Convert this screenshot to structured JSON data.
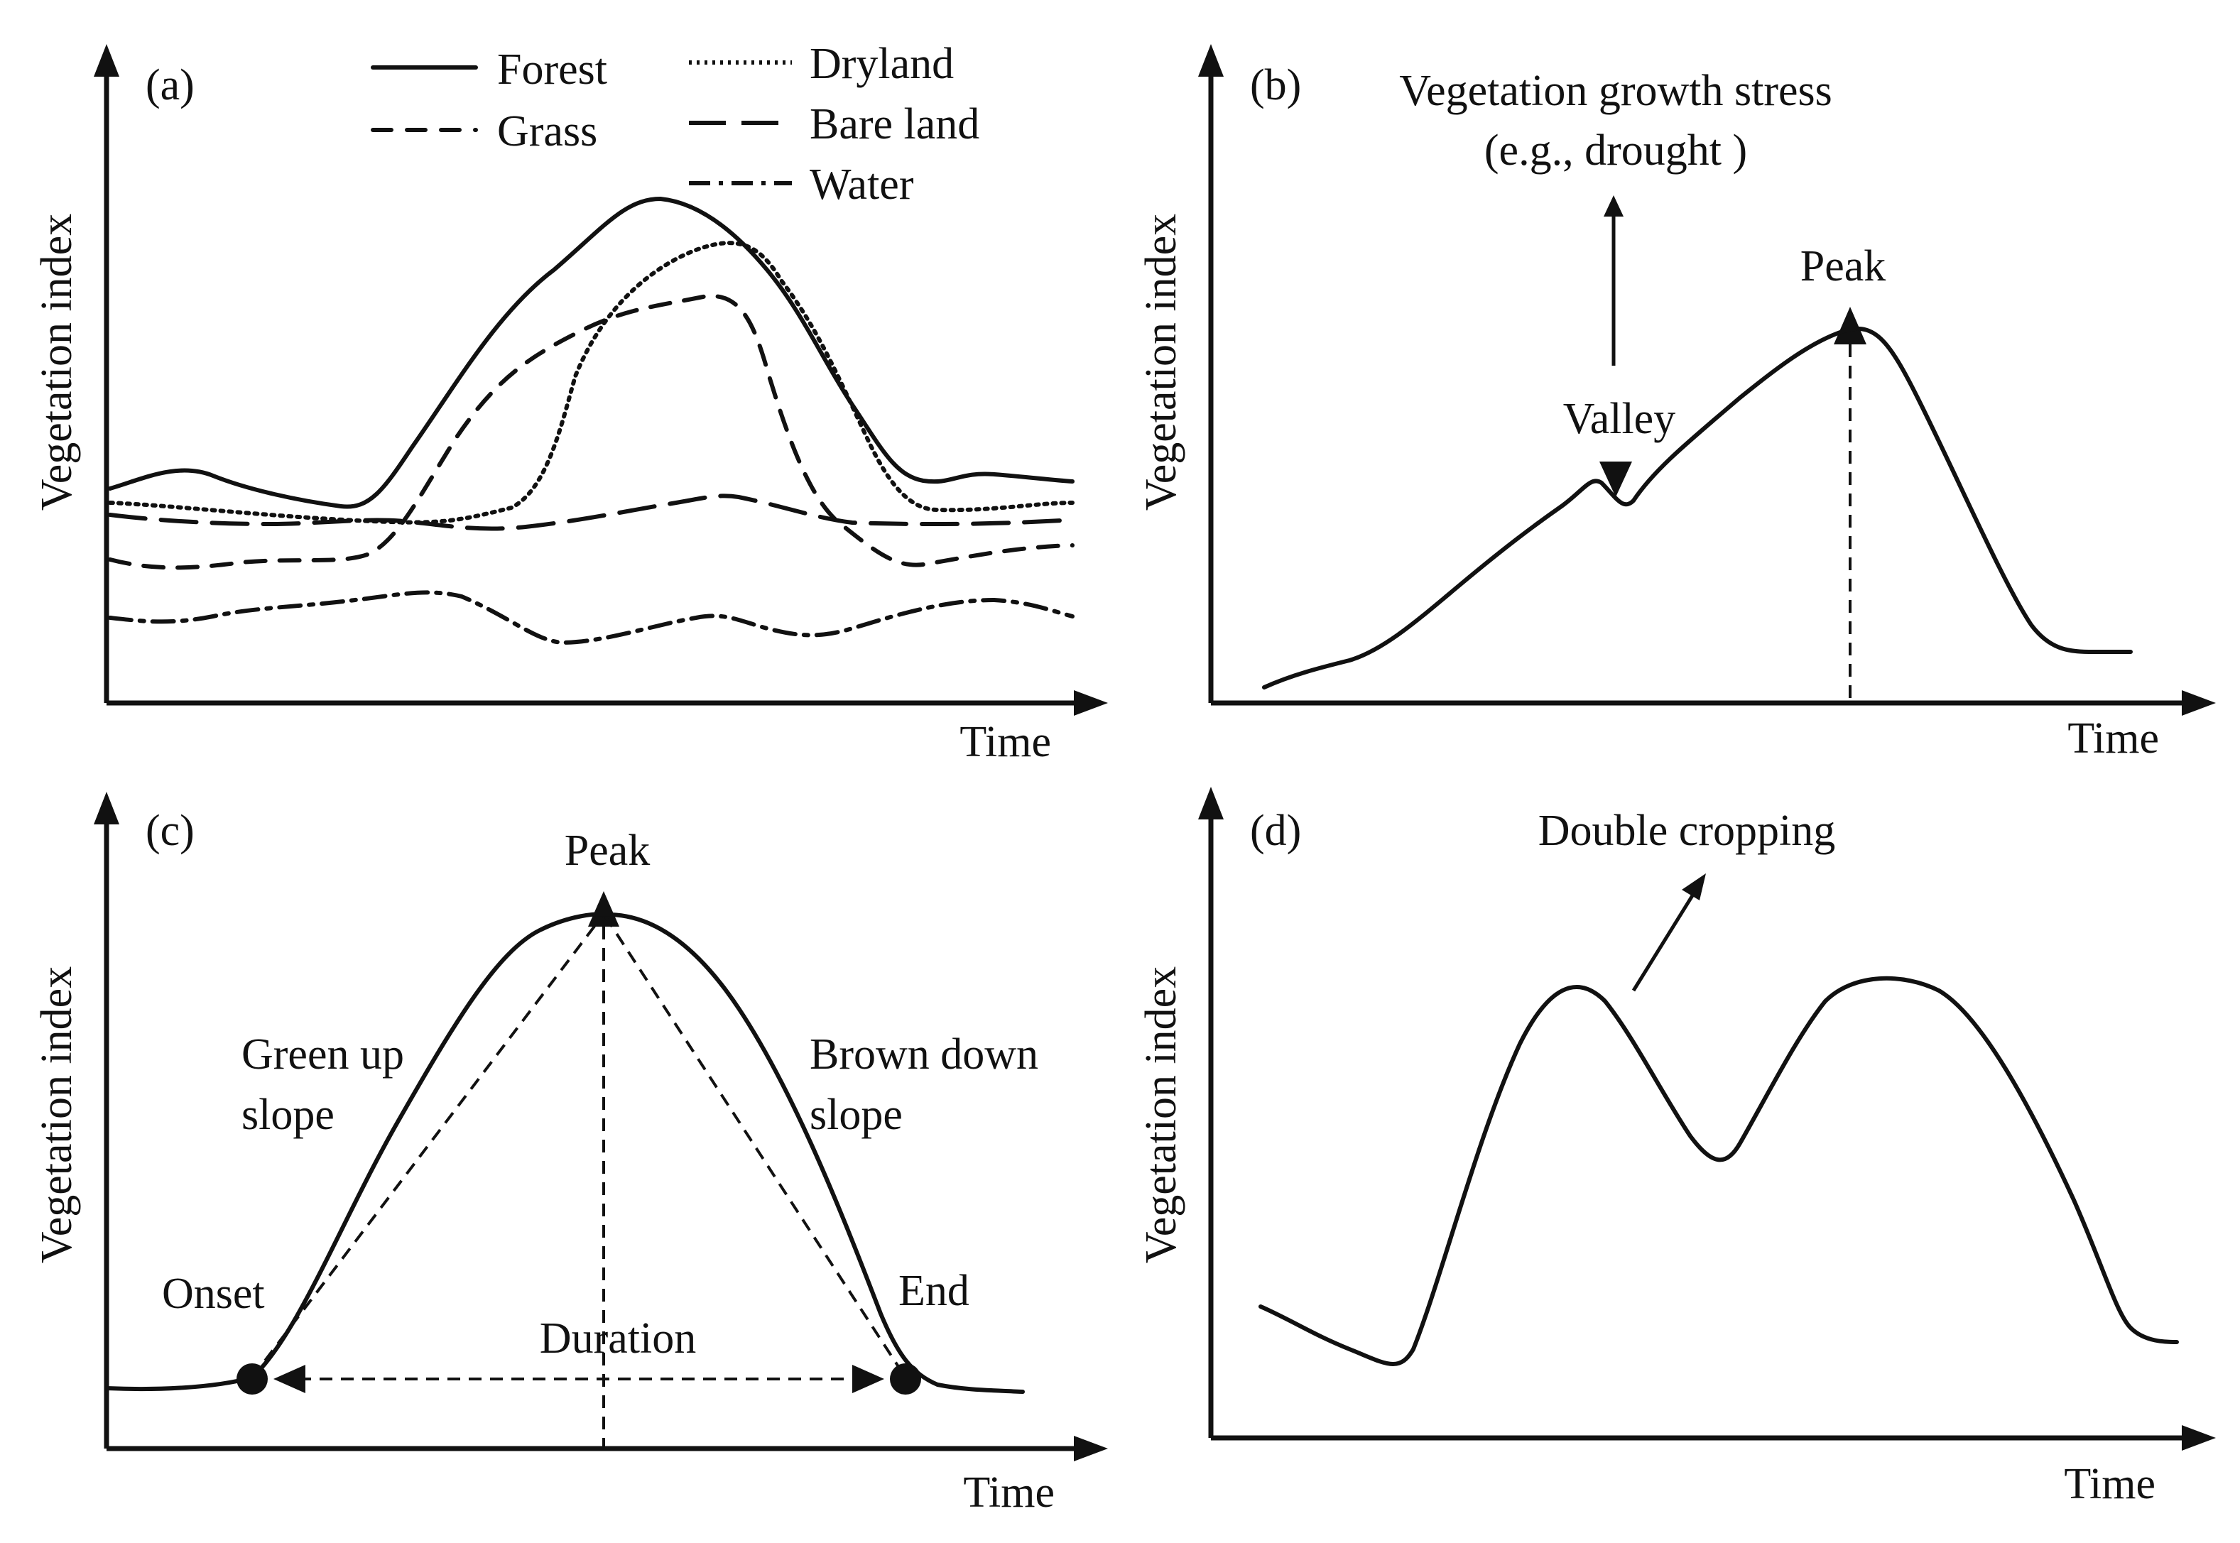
{
  "figure": {
    "panels": [
      {
        "id": "a",
        "label": "(a)",
        "ylabel": "Vegetation index",
        "xlabel": "Time",
        "legend": [
          {
            "name": "Forest",
            "style": "solid"
          },
          {
            "name": "Grass",
            "style": "short-dash"
          },
          {
            "name": "Dryland",
            "style": "dotted"
          },
          {
            "name": "Bare land",
            "style": "long-dash"
          },
          {
            "name": "Water",
            "style": "dash-dot"
          }
        ]
      },
      {
        "id": "b",
        "label": "(b)",
        "ylabel": "Vegetation index",
        "xlabel": "Time",
        "annotations": {
          "stress_line1": "Vegetation growth stress",
          "stress_line2": "(e.g., drought )",
          "valley": "Valley",
          "peak": "Peak"
        }
      },
      {
        "id": "c",
        "label": "(c)",
        "ylabel": "Vegetation index",
        "xlabel": "Time",
        "annotations": {
          "peak": "Peak",
          "green_up_line1": "Green up",
          "green_up_line2": "slope",
          "brown_down_line1": "Brown down",
          "brown_down_line2": "slope",
          "onset": "Onset",
          "end": "End",
          "duration": "Duration"
        }
      },
      {
        "id": "d",
        "label": "(d)",
        "ylabel": "Vegetation index",
        "xlabel": "Time",
        "annotations": {
          "double_cropping": "Double cropping"
        }
      }
    ]
  }
}
